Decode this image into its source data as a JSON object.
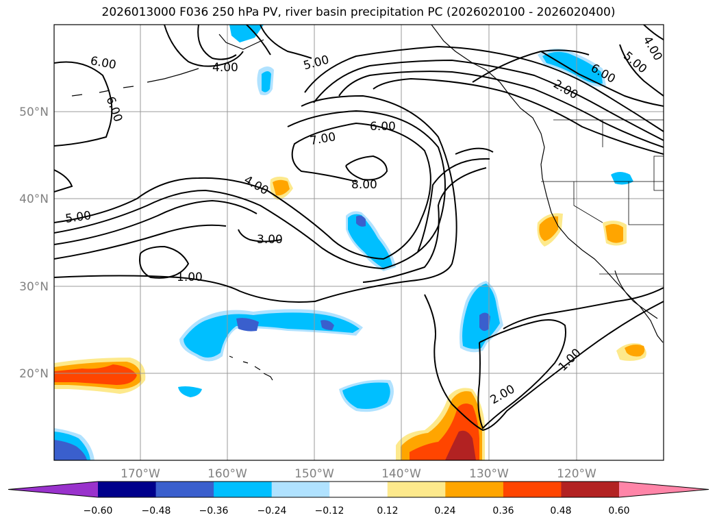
{
  "title": "2026013000 F036 250 hPa PV, river basin precipitation PC (2026020100 - 2026020400)",
  "lat_labels": [
    "50°N",
    "40°N",
    "30°N",
    "20°N"
  ],
  "lon_labels": [
    "170°W",
    "160°W",
    "150°W",
    "140°W",
    "130°W",
    "120°W"
  ],
  "contour_labels": [
    "6.00",
    "6.00",
    "4.00",
    "5.00",
    "5.00",
    "4.00",
    "2.00",
    "6.00",
    "7.00",
    "6.00",
    "8.00",
    "4.00",
    "5.00",
    "3.00",
    "1.00",
    "2.00",
    "1.00"
  ],
  "colorbar": {
    "ticks": [
      "−0.60",
      "−0.48",
      "−0.36",
      "−0.24",
      "−0.12",
      "0.12",
      "0.24",
      "0.36",
      "0.48",
      "0.60"
    ],
    "colors": [
      "#9932cc",
      "#00008b",
      "#3a5fcd",
      "#00bfff",
      "#b0e2ff",
      "#ffffff",
      "#fde98c",
      "#ffa500",
      "#ff4500",
      "#b22222",
      "#ff85a8"
    ]
  },
  "colors": {
    "dark_blue": "#3a5fcd",
    "cyan": "#00bfff",
    "light_blue": "#b0e2ff",
    "light_yellow": "#fde98c",
    "orange": "#ffa500",
    "red_orange": "#ff4500",
    "dark_red": "#b22222"
  }
}
